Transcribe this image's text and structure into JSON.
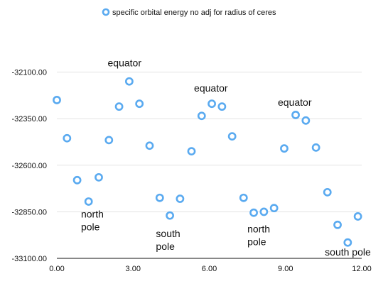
{
  "chart_data": {
    "type": "scatter",
    "title": "",
    "xlabel": "",
    "ylabel": "",
    "xlim": [
      0,
      12
    ],
    "ylim": [
      -33100,
      -31850
    ],
    "x_ticks": [
      "0.00",
      "3.00",
      "6.00",
      "9.00",
      "12.00"
    ],
    "y_ticks": [
      "-32100.00",
      "-32350.00",
      "-32600.00",
      "-32850.00",
      "-33100.00"
    ],
    "grid": true,
    "legend_position": "top",
    "series": [
      {
        "name": "specific orbital energy no adj for radius of ceres",
        "color": "#5aaaf0",
        "points": [
          {
            "x": 0.0,
            "y": -32250
          },
          {
            "x": 0.4,
            "y": -32455
          },
          {
            "x": 0.8,
            "y": -32680
          },
          {
            "x": 1.25,
            "y": -32795
          },
          {
            "x": 1.65,
            "y": -32665
          },
          {
            "x": 2.05,
            "y": -32465
          },
          {
            "x": 2.45,
            "y": -32285
          },
          {
            "x": 2.85,
            "y": -32150
          },
          {
            "x": 3.25,
            "y": -32270
          },
          {
            "x": 3.65,
            "y": -32495
          },
          {
            "x": 4.05,
            "y": -32775
          },
          {
            "x": 4.45,
            "y": -32870
          },
          {
            "x": 4.85,
            "y": -32780
          },
          {
            "x": 5.3,
            "y": -32525
          },
          {
            "x": 5.7,
            "y": -32335
          },
          {
            "x": 6.1,
            "y": -32270
          },
          {
            "x": 6.5,
            "y": -32285
          },
          {
            "x": 6.9,
            "y": -32445
          },
          {
            "x": 7.35,
            "y": -32775
          },
          {
            "x": 7.75,
            "y": -32855
          },
          {
            "x": 8.15,
            "y": -32850
          },
          {
            "x": 8.55,
            "y": -32830
          },
          {
            "x": 8.95,
            "y": -32510
          },
          {
            "x": 9.4,
            "y": -32330
          },
          {
            "x": 9.8,
            "y": -32360
          },
          {
            "x": 10.2,
            "y": -32505
          },
          {
            "x": 10.65,
            "y": -32745
          },
          {
            "x": 11.05,
            "y": -32920
          },
          {
            "x": 11.45,
            "y": -33015
          },
          {
            "x": 11.85,
            "y": -32875
          }
        ]
      }
    ],
    "annotations": [
      {
        "text": "equator",
        "x": 2.0,
        "y": -32070
      },
      {
        "text": "equator",
        "x": 5.4,
        "y": -32205
      },
      {
        "text": "equator",
        "x": 8.7,
        "y": -32280
      },
      {
        "text": "north",
        "x": 0.95,
        "y": -32880
      },
      {
        "text": "pole",
        "x": 0.95,
        "y": -32950
      },
      {
        "text": "south",
        "x": 3.9,
        "y": -32985
      },
      {
        "text": "pole",
        "x": 3.9,
        "y": -33055
      },
      {
        "text": "north",
        "x": 7.5,
        "y": -32960
      },
      {
        "text": "pole",
        "x": 7.5,
        "y": -33030
      },
      {
        "text": "south pole",
        "x": 10.55,
        "y": -33085
      }
    ]
  }
}
